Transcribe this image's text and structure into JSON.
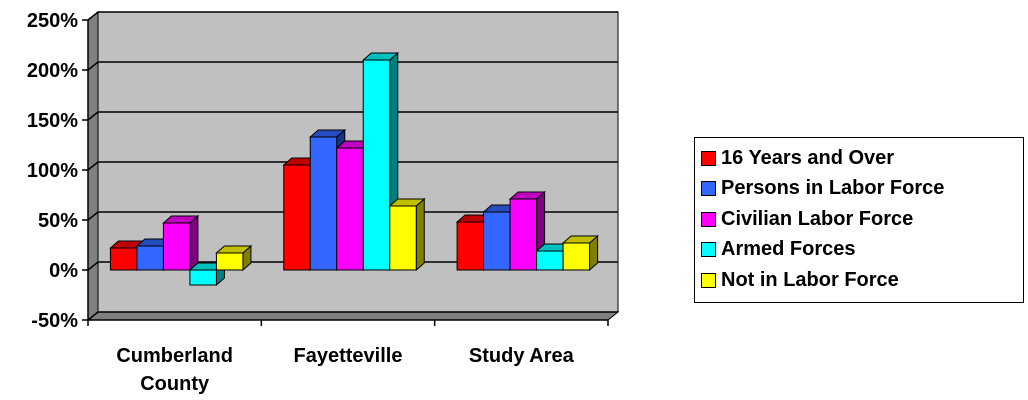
{
  "chart_data": {
    "type": "bar",
    "categories": [
      [
        "Cumberland",
        "County"
      ],
      [
        "Fayetteville"
      ],
      [
        "Study Area"
      ]
    ],
    "series": [
      {
        "name": "16 Years and Over",
        "color": "#ff0000",
        "values": [
          22,
          105,
          48
        ]
      },
      {
        "name": "Persons in Labor Force",
        "color": "#3366ff",
        "values": [
          24,
          133,
          58
        ]
      },
      {
        "name": "Civilian Labor Force",
        "color": "#ff00ff",
        "values": [
          47,
          122,
          71
        ]
      },
      {
        "name": "Armed Forces",
        "color": "#00ffff",
        "values": [
          -15,
          210,
          19
        ]
      },
      {
        "name": "Not in Labor Force",
        "color": "#ffff00",
        "values": [
          17,
          64,
          27
        ]
      }
    ],
    "y_ticks": [
      "250%",
      "200%",
      "150%",
      "100%",
      "50%",
      "0%",
      "-50%"
    ],
    "y_tick_values": [
      250,
      200,
      150,
      100,
      50,
      0,
      -50
    ],
    "ylim": [
      -50,
      250
    ],
    "grid": true,
    "legend": "right",
    "plot_background": "#c0c0c0",
    "title": "",
    "xlabel": "",
    "ylabel": ""
  }
}
